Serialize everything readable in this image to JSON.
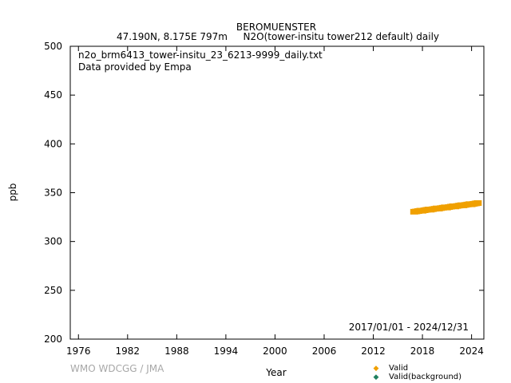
{
  "header": {
    "station": "BEROMUENSTER",
    "location": "47.190N, 8.175E 797m",
    "parameter": "N2O(tower-insitu tower212 default) daily"
  },
  "info": {
    "filename": "n2o_brm6413_tower-insitu_23_6213-9999_daily.txt",
    "provider": "Data provided by Empa"
  },
  "date_range": "2017/01/01 - 2024/12/31",
  "credit": "WMO WDCGG / JMA",
  "colors": {
    "valid": "#f0a000",
    "background": "#208060",
    "axis": "#000000"
  },
  "chart_data": {
    "type": "scatter",
    "xlabel": "Year",
    "ylabel": "ppb",
    "xlim": [
      1975,
      2025.5
    ],
    "ylim": [
      200,
      500
    ],
    "x_ticks": [
      1976,
      1982,
      1988,
      1994,
      2000,
      2006,
      2012,
      2018,
      2024
    ],
    "x_tick_labels": [
      "1976",
      "1982",
      "1988",
      "1994",
      "2000",
      "2006",
      "2012",
      "2018",
      "2024"
    ],
    "y_ticks": [
      200,
      250,
      300,
      350,
      400,
      450,
      500
    ],
    "y_tick_labels": [
      "200",
      "250",
      "300",
      "350",
      "400",
      "450",
      "500"
    ],
    "legend": {
      "placement": "bottom-right",
      "entries": [
        "Valid",
        "Valid(background)"
      ]
    },
    "series": [
      {
        "name": "Valid",
        "x": [
          2017.0,
          2017.25,
          2017.5,
          2017.75,
          2018.0,
          2018.25,
          2018.5,
          2018.75,
          2019.0,
          2019.25,
          2019.5,
          2019.75,
          2020.0,
          2020.25,
          2020.5,
          2020.75,
          2021.0,
          2021.25,
          2021.5,
          2021.75,
          2022.0,
          2022.25,
          2022.5,
          2022.75,
          2023.0,
          2023.25,
          2023.5,
          2023.75,
          2024.0,
          2024.25,
          2024.5,
          2024.75
        ],
        "y": [
          330.5,
          330.8,
          331.2,
          331.6,
          331.5,
          332.0,
          332.4,
          332.8,
          332.6,
          333.1,
          333.5,
          333.9,
          333.7,
          334.2,
          334.6,
          335.0,
          334.8,
          335.3,
          335.7,
          336.1,
          335.9,
          336.4,
          336.8,
          337.2,
          337.0,
          337.5,
          337.9,
          338.3,
          338.1,
          338.6,
          339.0,
          339.4
        ]
      },
      {
        "name": "Valid(background)",
        "x": [],
        "y": []
      }
    ]
  }
}
